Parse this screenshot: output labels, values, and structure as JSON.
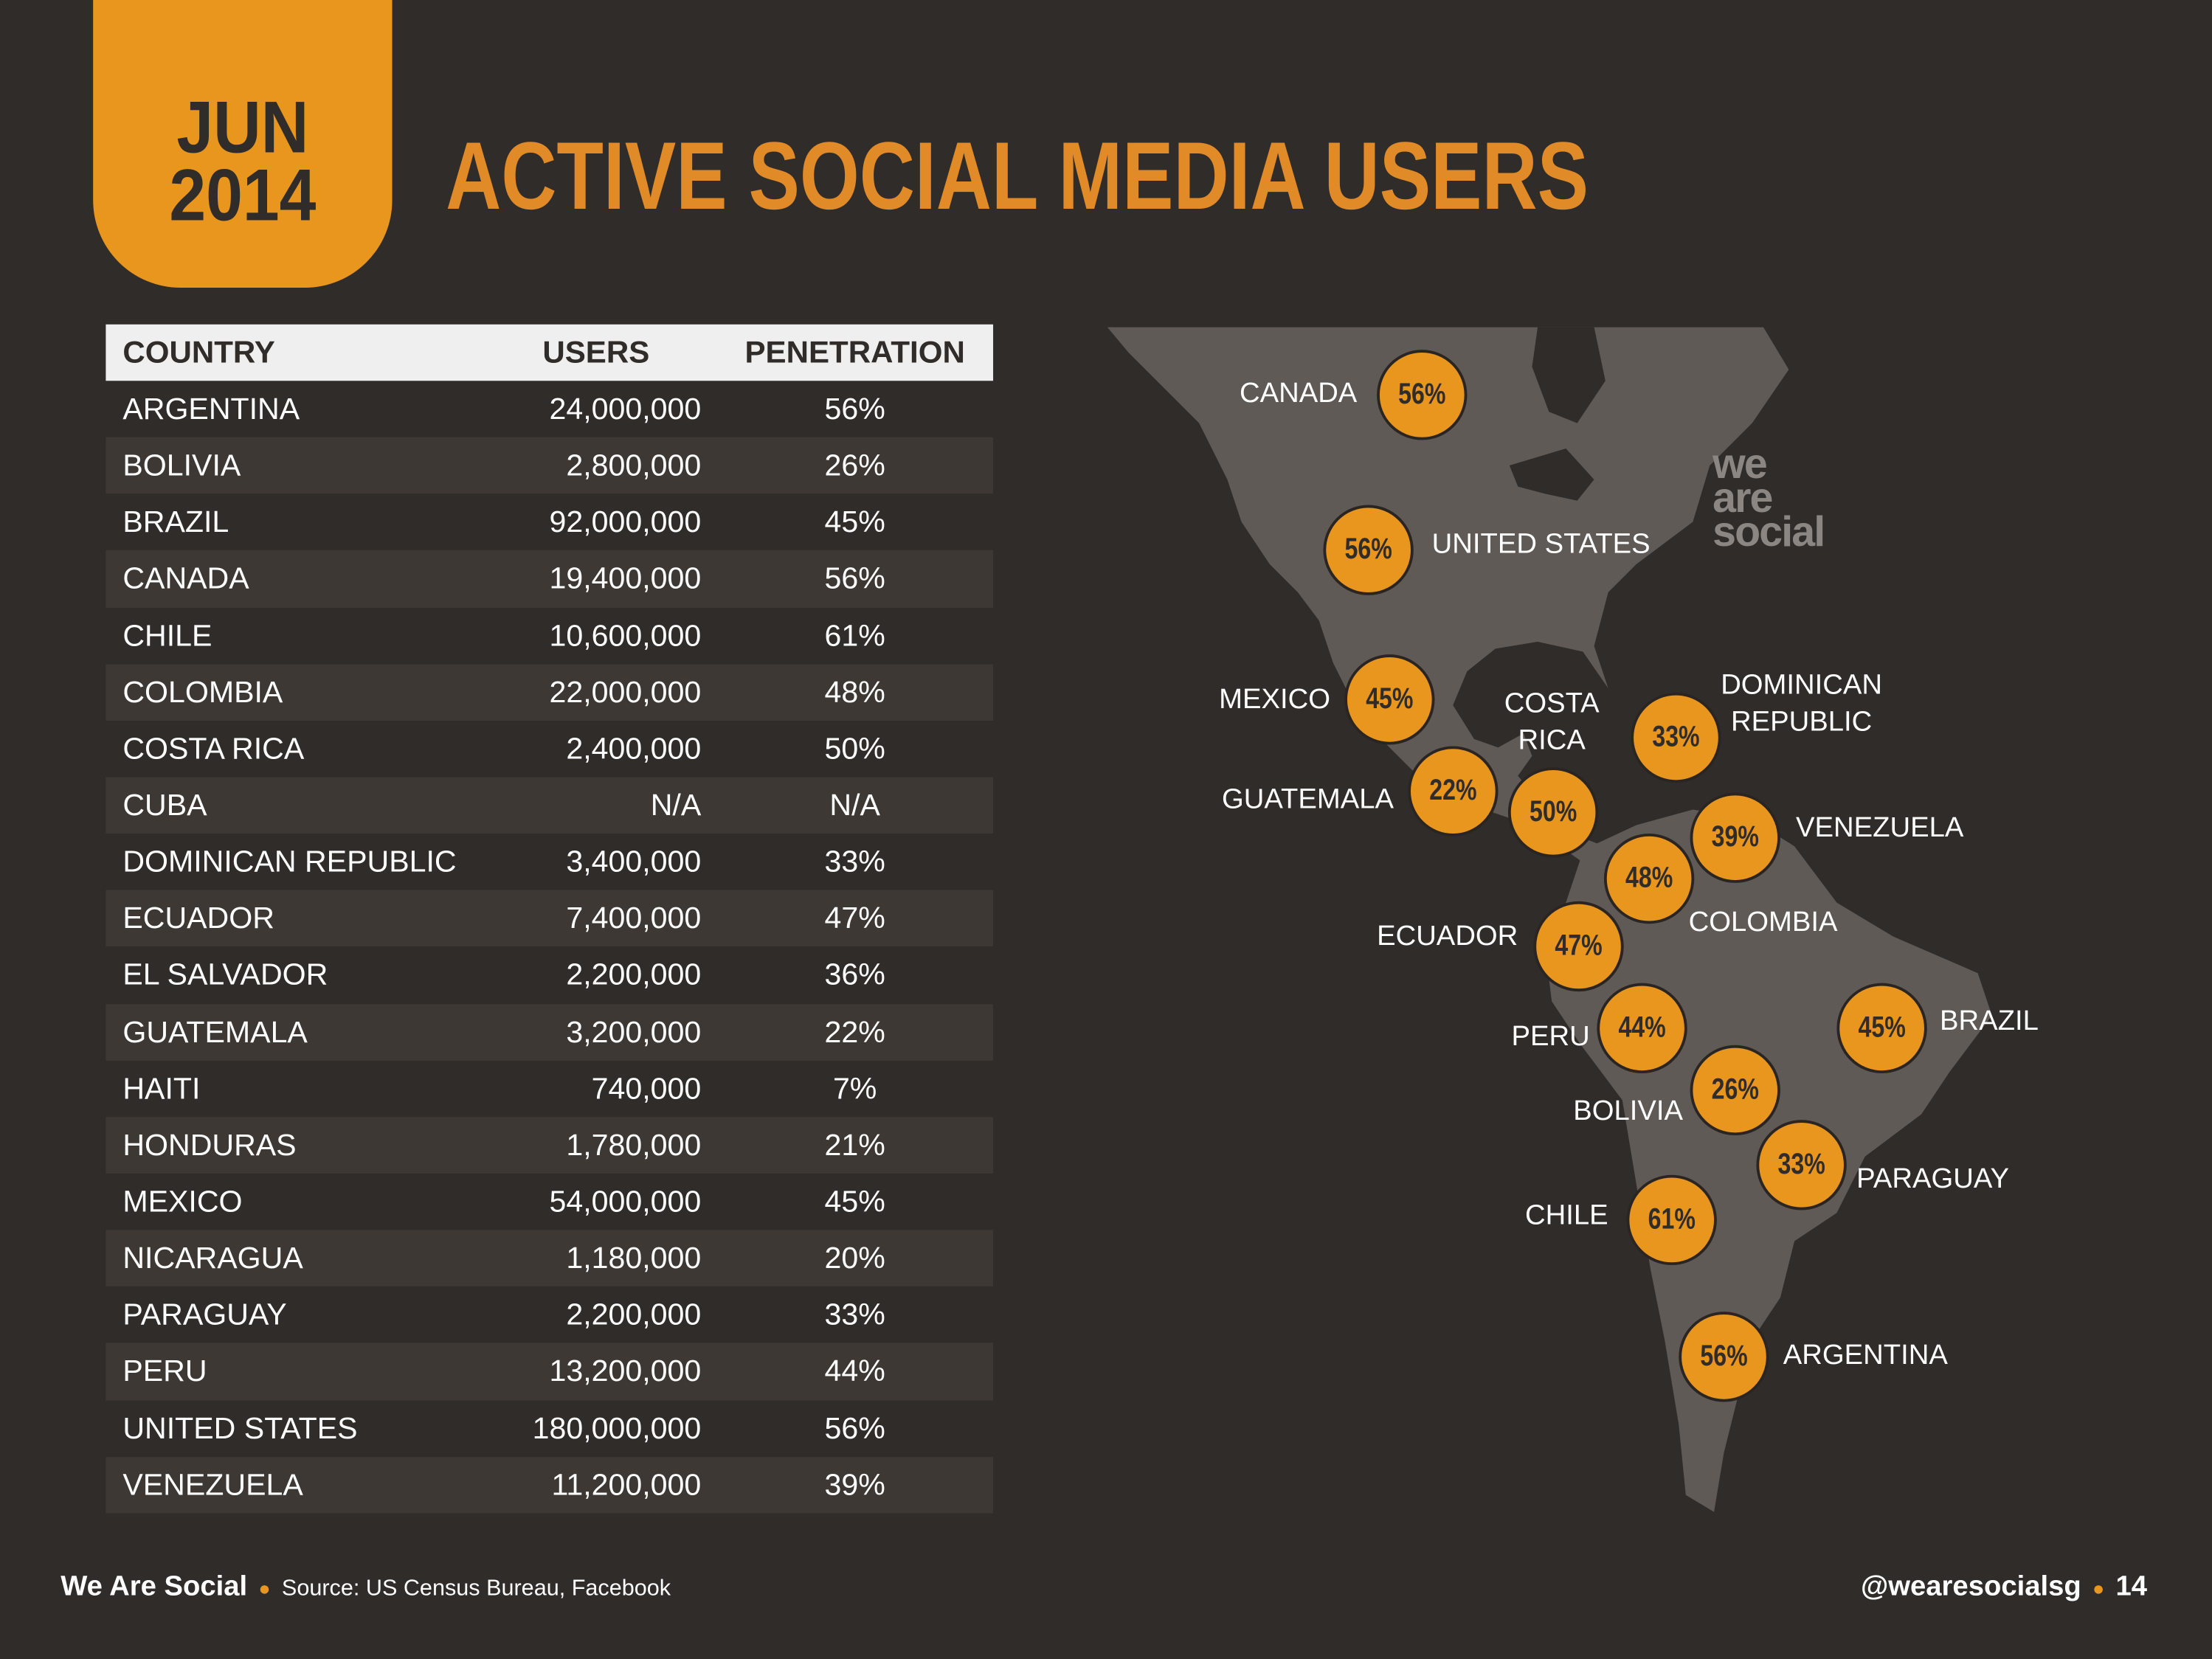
{
  "badge": {
    "month": "JUN",
    "year": "2014"
  },
  "title": "ACTIVE SOCIAL MEDIA USERS",
  "colors": {
    "background": "#302c29",
    "accent": "#e8961e",
    "map_land": "#5f5a56"
  },
  "chart_data": {
    "type": "table",
    "title": "ACTIVE SOCIAL MEDIA USERS",
    "columns": [
      "COUNTRY",
      "USERS",
      "PENETRATION"
    ],
    "rows": [
      [
        "ARGENTINA",
        "24,000,000",
        "56%"
      ],
      [
        "BOLIVIA",
        "2,800,000",
        "26%"
      ],
      [
        "BRAZIL",
        "92,000,000",
        "45%"
      ],
      [
        "CANADA",
        "19,400,000",
        "56%"
      ],
      [
        "CHILE",
        "10,600,000",
        "61%"
      ],
      [
        "COLOMBIA",
        "22,000,000",
        "48%"
      ],
      [
        "COSTA RICA",
        "2,400,000",
        "50%"
      ],
      [
        "CUBA",
        "N/A",
        "N/A"
      ],
      [
        "DOMINICAN REPUBLIC",
        "3,400,000",
        "33%"
      ],
      [
        "ECUADOR",
        "7,400,000",
        "47%"
      ],
      [
        "EL SALVADOR",
        "2,200,000",
        "36%"
      ],
      [
        "GUATEMALA",
        "3,200,000",
        "22%"
      ],
      [
        "HAITI",
        "740,000",
        "7%"
      ],
      [
        "HONDURAS",
        "1,780,000",
        "21%"
      ],
      [
        "MEXICO",
        "54,000,000",
        "45%"
      ],
      [
        "NICARAGUA",
        "1,180,000",
        "20%"
      ],
      [
        "PARAGUAY",
        "2,200,000",
        "33%"
      ],
      [
        "PERU",
        "13,200,000",
        "44%"
      ],
      [
        "UNITED STATES",
        "180,000,000",
        "56%"
      ],
      [
        "VENEZUELA",
        "11,200,000",
        "39%"
      ]
    ],
    "map_bubbles": [
      {
        "country": "CANADA",
        "value": "56%"
      },
      {
        "country": "UNITED STATES",
        "value": "56%"
      },
      {
        "country": "MEXICO",
        "value": "45%"
      },
      {
        "country": "GUATEMALA",
        "value": "22%"
      },
      {
        "country": "COSTA RICA",
        "value": "50%"
      },
      {
        "country": "DOMINICAN REPUBLIC",
        "value": "33%"
      },
      {
        "country": "VENEZUELA",
        "value": "39%"
      },
      {
        "country": "COLOMBIA",
        "value": "48%"
      },
      {
        "country": "ECUADOR",
        "value": "47%"
      },
      {
        "country": "PERU",
        "value": "44%"
      },
      {
        "country": "BRAZIL",
        "value": "45%"
      },
      {
        "country": "BOLIVIA",
        "value": "26%"
      },
      {
        "country": "PARAGUAY",
        "value": "33%"
      },
      {
        "country": "CHILE",
        "value": "61%"
      },
      {
        "country": "ARGENTINA",
        "value": "56%"
      }
    ]
  },
  "map_labels": [
    "CANADA",
    "UNITED STATES",
    "MEXICO",
    "GUATEMALA",
    "COSTA\nRICA",
    "DOMINICAN\nREPUBLIC",
    "VENEZUELA",
    "COLOMBIA",
    "ECUADOR",
    "PERU",
    "BRAZIL",
    "BOLIVIA",
    "PARAGUAY",
    "CHILE",
    "ARGENTINA"
  ],
  "logo": "we are social",
  "footer": {
    "brand": "We Are Social",
    "source": "Source: US Census Bureau, Facebook",
    "handle": "@wearesocialsg",
    "page": "14"
  }
}
